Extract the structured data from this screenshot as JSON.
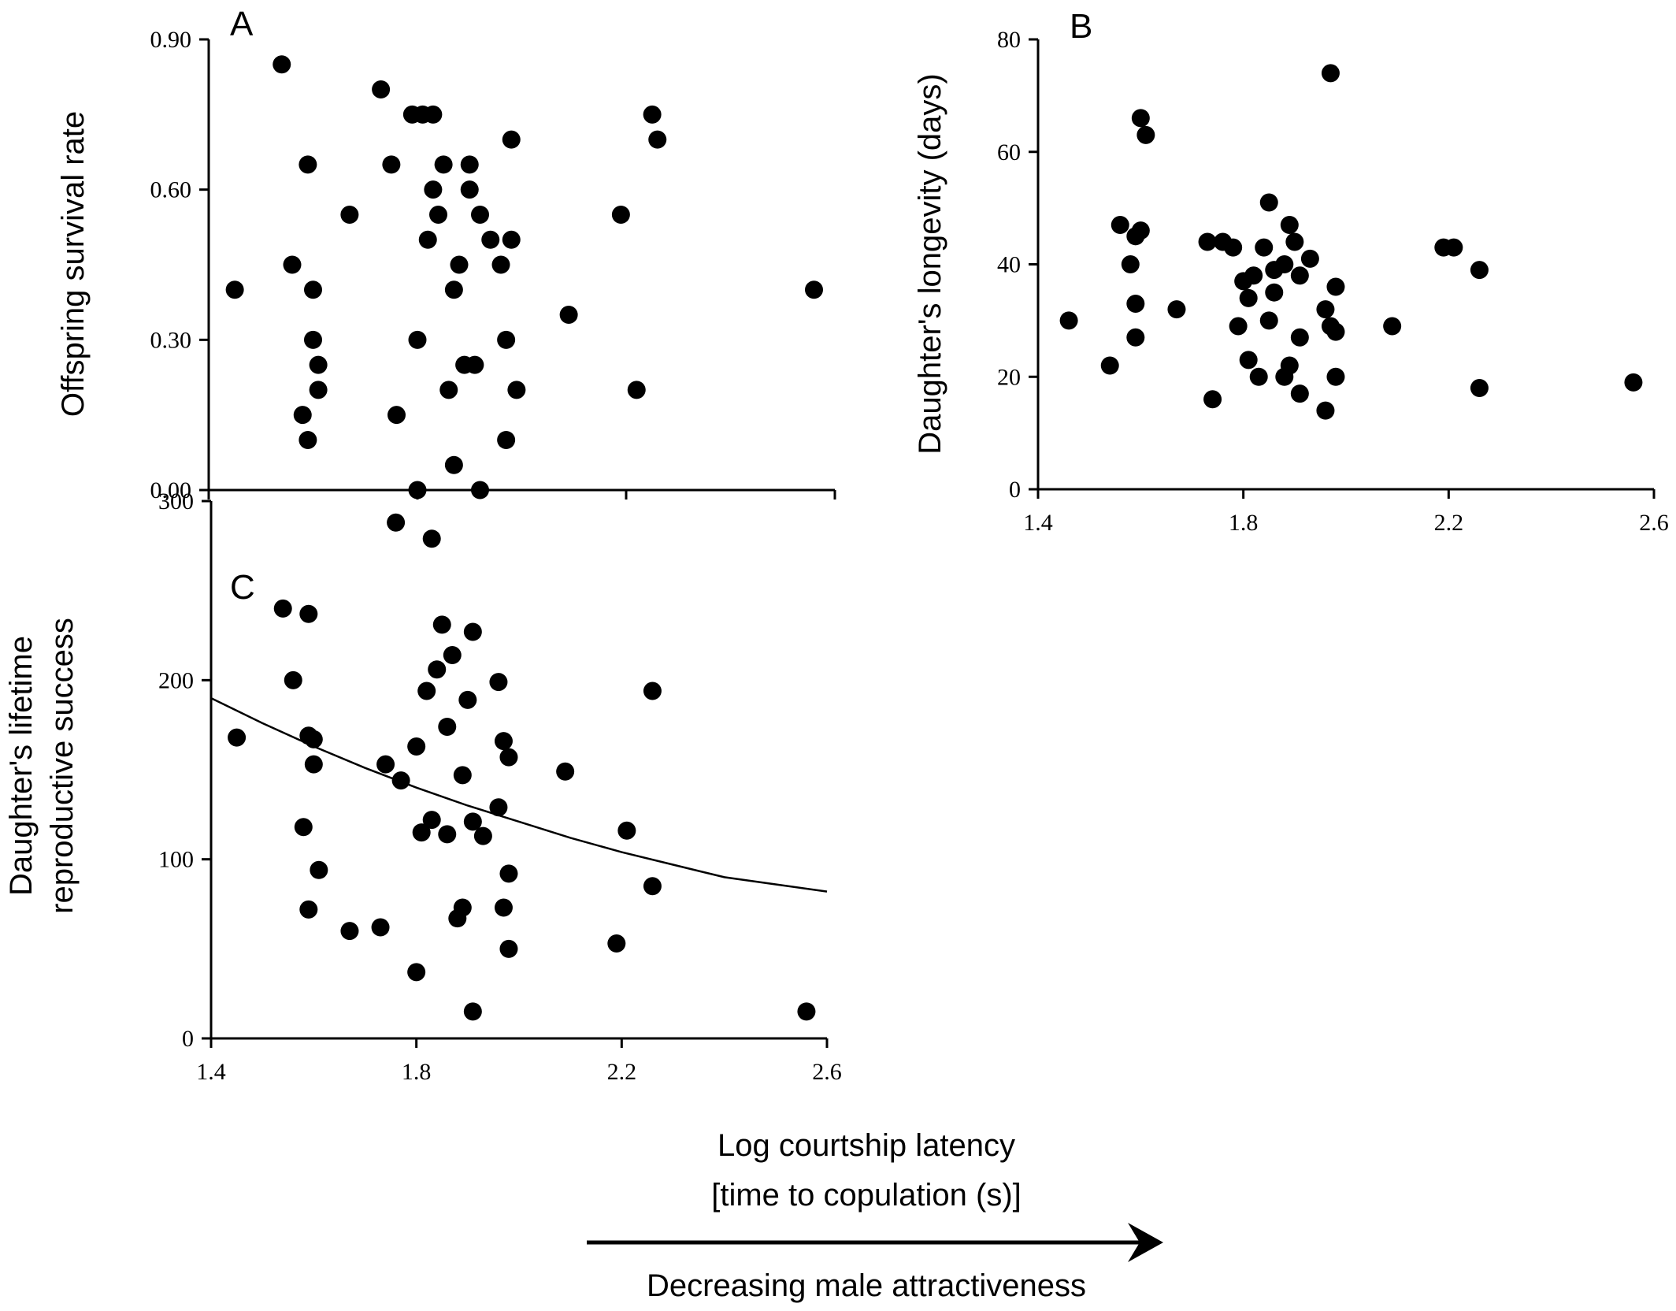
{
  "figure": {
    "shared_xlabel_line1": "Log courtship latency",
    "shared_xlabel_line2": "[time to copulation (s)]",
    "arrow_label": "Decreasing male attractiveness"
  },
  "chart_data": [
    {
      "panel": "A",
      "type": "scatter",
      "xlabel": "",
      "ylabel": "Offspring survival rate",
      "xlim": [
        1.4,
        2.6
      ],
      "ylim": [
        0,
        0.9
      ],
      "yticks": [
        "0.00",
        "0.30",
        "0.60",
        "0.90"
      ],
      "xticks": [],
      "points": [
        [
          1.45,
          0.4
        ],
        [
          1.54,
          0.85
        ],
        [
          1.56,
          0.45
        ],
        [
          1.58,
          0.15
        ],
        [
          1.59,
          0.65
        ],
        [
          1.6,
          0.4
        ],
        [
          1.59,
          0.1
        ],
        [
          1.6,
          0.3
        ],
        [
          1.61,
          0.25
        ],
        [
          1.61,
          0.2
        ],
        [
          1.67,
          0.55
        ],
        [
          1.73,
          0.8
        ],
        [
          1.75,
          0.65
        ],
        [
          1.76,
          0.15
        ],
        [
          1.79,
          0.75
        ],
        [
          1.81,
          0.75
        ],
        [
          1.83,
          0.75
        ],
        [
          1.8,
          0.3
        ],
        [
          1.8,
          0.0
        ],
        [
          1.82,
          0.5
        ],
        [
          1.83,
          0.6
        ],
        [
          1.84,
          0.55
        ],
        [
          1.85,
          0.65
        ],
        [
          1.86,
          0.2
        ],
        [
          1.87,
          0.4
        ],
        [
          1.88,
          0.45
        ],
        [
          1.87,
          0.05
        ],
        [
          1.89,
          0.25
        ],
        [
          1.9,
          0.65
        ],
        [
          1.9,
          0.6
        ],
        [
          1.91,
          0.25
        ],
        [
          1.92,
          0.55
        ],
        [
          1.92,
          0.0
        ],
        [
          1.94,
          0.5
        ],
        [
          1.96,
          0.45
        ],
        [
          1.97,
          0.3
        ],
        [
          1.97,
          0.1
        ],
        [
          1.98,
          0.7
        ],
        [
          1.98,
          0.5
        ],
        [
          1.99,
          0.2
        ],
        [
          2.09,
          0.35
        ],
        [
          2.19,
          0.55
        ],
        [
          2.22,
          0.2
        ],
        [
          2.25,
          0.75
        ],
        [
          2.26,
          0.7
        ],
        [
          2.56,
          0.4
        ]
      ]
    },
    {
      "panel": "B",
      "type": "scatter",
      "xlabel": "",
      "ylabel": "Daughter's longevity (days)",
      "xlim": [
        1.4,
        2.6
      ],
      "ylim": [
        0,
        80
      ],
      "yticks": [
        "0",
        "20",
        "40",
        "60",
        "80"
      ],
      "xticks": [
        "1.4",
        "1.8",
        "2.2",
        "2.6"
      ],
      "points": [
        [
          1.46,
          30
        ],
        [
          1.54,
          22
        ],
        [
          1.56,
          47
        ],
        [
          1.58,
          40
        ],
        [
          1.59,
          45
        ],
        [
          1.59,
          33
        ],
        [
          1.59,
          27
        ],
        [
          1.6,
          46
        ],
        [
          1.6,
          66
        ],
        [
          1.61,
          63
        ],
        [
          1.67,
          32
        ],
        [
          1.73,
          44
        ],
        [
          1.74,
          16
        ],
        [
          1.76,
          44
        ],
        [
          1.78,
          43
        ],
        [
          1.79,
          29
        ],
        [
          1.8,
          37
        ],
        [
          1.81,
          34
        ],
        [
          1.81,
          23
        ],
        [
          1.82,
          38
        ],
        [
          1.83,
          20
        ],
        [
          1.84,
          43
        ],
        [
          1.85,
          51
        ],
        [
          1.85,
          30
        ],
        [
          1.86,
          35
        ],
        [
          1.86,
          39
        ],
        [
          1.88,
          40
        ],
        [
          1.88,
          20
        ],
        [
          1.89,
          22
        ],
        [
          1.89,
          47
        ],
        [
          1.9,
          44
        ],
        [
          1.91,
          38
        ],
        [
          1.91,
          27
        ],
        [
          1.91,
          17
        ],
        [
          1.93,
          41
        ],
        [
          1.96,
          32
        ],
        [
          1.96,
          14
        ],
        [
          1.97,
          74
        ],
        [
          1.97,
          29
        ],
        [
          1.98,
          28
        ],
        [
          1.98,
          36
        ],
        [
          1.98,
          20
        ],
        [
          2.09,
          29
        ],
        [
          2.19,
          43
        ],
        [
          2.21,
          43
        ],
        [
          2.26,
          39
        ],
        [
          2.26,
          18
        ],
        [
          2.56,
          19
        ]
      ]
    },
    {
      "panel": "C",
      "type": "scatter",
      "xlabel": "",
      "ylabel_line1": "Daughter's lifetime",
      "ylabel_line2": "reproductive success",
      "xlim": [
        1.4,
        2.6
      ],
      "ylim": [
        0,
        300
      ],
      "yticks": [
        "0",
        "100",
        "200",
        "300"
      ],
      "xticks": [
        "1.4",
        "1.8",
        "2.2",
        "2.6"
      ],
      "points": [
        [
          1.45,
          168
        ],
        [
          1.54,
          240
        ],
        [
          1.56,
          200
        ],
        [
          1.58,
          118
        ],
        [
          1.59,
          72
        ],
        [
          1.59,
          237
        ],
        [
          1.59,
          169
        ],
        [
          1.6,
          153
        ],
        [
          1.6,
          167
        ],
        [
          1.61,
          94
        ],
        [
          1.67,
          60
        ],
        [
          1.73,
          62
        ],
        [
          1.74,
          153
        ],
        [
          1.76,
          288
        ],
        [
          1.77,
          144
        ],
        [
          1.8,
          37
        ],
        [
          1.8,
          163
        ],
        [
          1.81,
          115
        ],
        [
          1.82,
          194
        ],
        [
          1.83,
          279
        ],
        [
          1.83,
          122
        ],
        [
          1.84,
          206
        ],
        [
          1.85,
          231
        ],
        [
          1.86,
          114
        ],
        [
          1.86,
          174
        ],
        [
          1.87,
          214
        ],
        [
          1.88,
          67
        ],
        [
          1.89,
          73
        ],
        [
          1.89,
          147
        ],
        [
          1.9,
          189
        ],
        [
          1.91,
          121
        ],
        [
          1.91,
          227
        ],
        [
          1.91,
          15
        ],
        [
          1.93,
          113
        ],
        [
          1.96,
          129
        ],
        [
          1.96,
          199
        ],
        [
          1.97,
          73
        ],
        [
          1.97,
          166
        ],
        [
          1.98,
          92
        ],
        [
          1.98,
          157
        ],
        [
          1.98,
          50
        ],
        [
          2.09,
          149
        ],
        [
          2.19,
          53
        ],
        [
          2.21,
          116
        ],
        [
          2.26,
          194
        ],
        [
          2.26,
          85
        ],
        [
          2.56,
          15
        ]
      ],
      "fit_curve": {
        "x": [
          1.4,
          1.5,
          1.6,
          1.7,
          1.8,
          1.9,
          2.0,
          2.1,
          2.2,
          2.3,
          2.4,
          2.5,
          2.6
        ],
        "y": [
          190,
          176,
          163,
          151,
          140,
          130,
          121,
          112,
          104,
          97,
          90,
          86,
          82
        ]
      }
    }
  ]
}
